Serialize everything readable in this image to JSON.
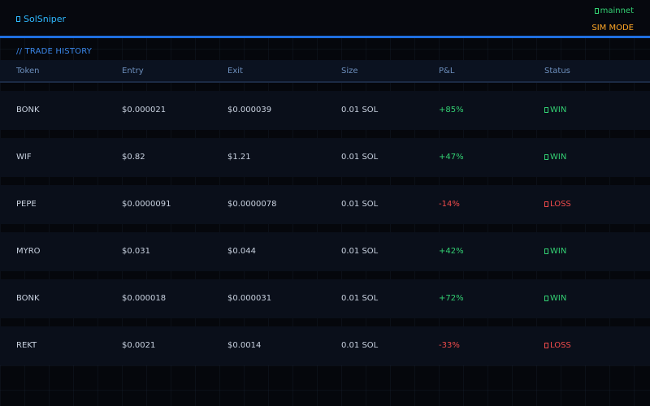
{
  "header": {
    "app_name": "SolSniper",
    "network": "mainnet",
    "mode": "SIM MODE",
    "brand_icon": "logo-glyph-icon",
    "network_icon": "network-status-icon"
  },
  "section": {
    "title": "// TRADE HISTORY"
  },
  "table": {
    "columns": [
      "Token",
      "Entry",
      "Exit",
      "Size",
      "P&L",
      "Status"
    ],
    "rows": [
      {
        "token": "BONK",
        "entry": "$0.000021",
        "exit": "$0.000039",
        "size": "0.01 SOL",
        "pnl": "+85%",
        "status": "WIN"
      },
      {
        "token": "WIF",
        "entry": "$0.82",
        "exit": "$1.21",
        "size": "0.01 SOL",
        "pnl": "+47%",
        "status": "WIN"
      },
      {
        "token": "PEPE",
        "entry": "$0.0000091",
        "exit": "$0.0000078",
        "size": "0.01 SOL",
        "pnl": "-14%",
        "status": "LOSS"
      },
      {
        "token": "MYRO",
        "entry": "$0.031",
        "exit": "$0.044",
        "size": "0.01 SOL",
        "pnl": "+42%",
        "status": "WIN"
      },
      {
        "token": "BONK",
        "entry": "$0.000018",
        "exit": "$0.000031",
        "size": "0.01 SOL",
        "pnl": "+72%",
        "status": "WIN"
      },
      {
        "token": "REKT",
        "entry": "$0.0021",
        "exit": "$0.0014",
        "size": "0.01 SOL",
        "pnl": "-33%",
        "status": "LOSS"
      }
    ]
  },
  "colors": {
    "accent": "#1f6fe0",
    "brand": "#2fb8ff",
    "win": "#33d173",
    "loss": "#f04b4b",
    "mode": "#ffa726"
  }
}
